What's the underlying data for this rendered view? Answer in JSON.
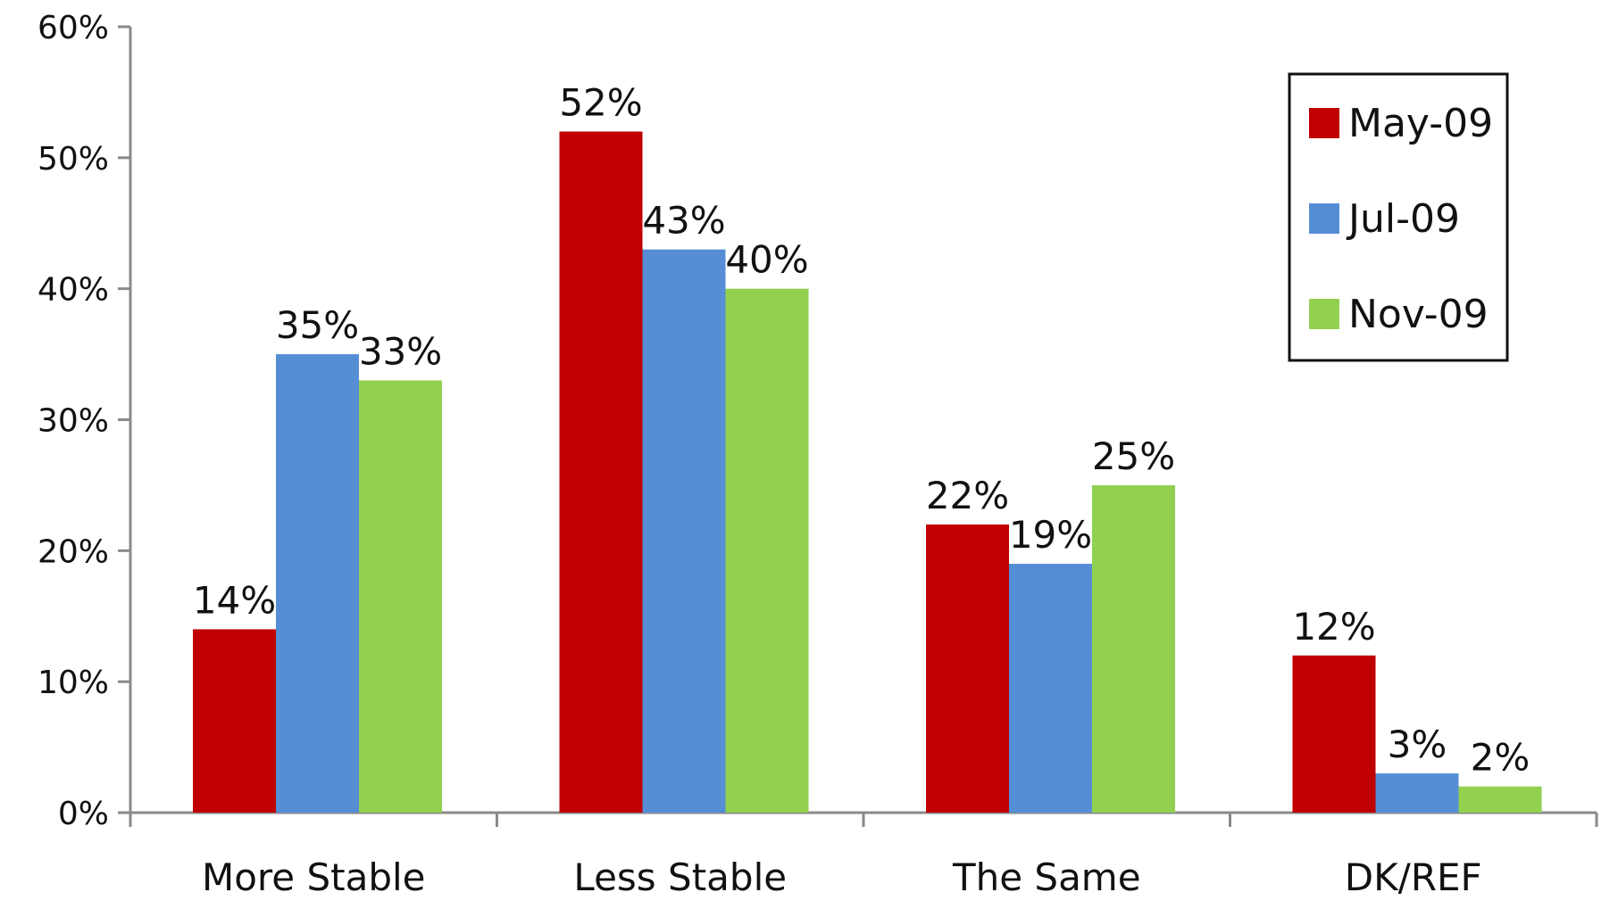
{
  "chart_data": {
    "type": "bar",
    "title": "",
    "xlabel": "",
    "ylabel": "",
    "categories": [
      "More Stable",
      "Less Stable",
      "The Same",
      "DK/REF"
    ],
    "series": [
      {
        "name": "May-09",
        "color": "#C00000",
        "values": [
          14,
          52,
          22,
          12
        ]
      },
      {
        "name": "Jul-09",
        "color": "#558ED5",
        "values": [
          35,
          43,
          19,
          3
        ]
      },
      {
        "name": "Nov-09",
        "color": "#92D050",
        "values": [
          33,
          40,
          25,
          2
        ]
      }
    ],
    "ylim": [
      0,
      60
    ],
    "yticks": [
      0,
      10,
      20,
      30,
      40,
      50,
      60
    ],
    "ytick_labels": [
      "0%",
      "10%",
      "20%",
      "30%",
      "40%",
      "50%",
      "60%"
    ],
    "value_suffix": "%",
    "grid": false,
    "legend_position": "top-right"
  }
}
